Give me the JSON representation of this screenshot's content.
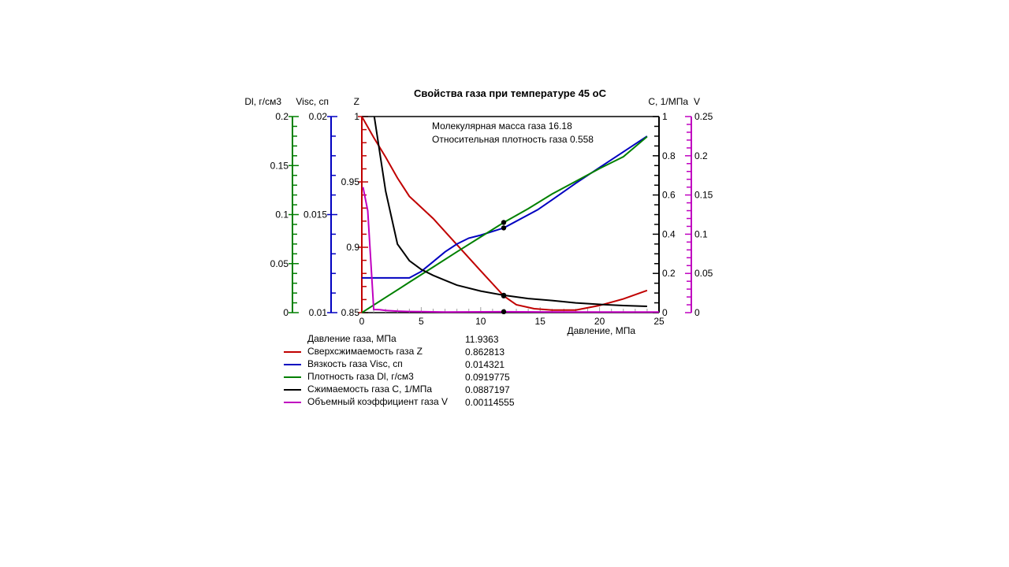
{
  "chart_data": {
    "type": "line",
    "title": "Свойства газа при температуре 45 оС",
    "annotations": [
      "Молекулярная масса газа 16.18",
      "Относительная плотность газа 0.558"
    ],
    "xlabel": "Давление, МПа",
    "xlim": [
      0,
      25
    ],
    "xticks": [
      "0",
      "5",
      "10",
      "15",
      "20",
      "25"
    ],
    "axes": [
      {
        "id": "dl",
        "label": "Dl, г/см3",
        "side": "left",
        "color": "#008000",
        "range": [
          0,
          0.2
        ],
        "ticks": [
          "0",
          "0.05",
          "0.1",
          "0.15",
          "0.2"
        ],
        "minor_step": 0.01
      },
      {
        "id": "visc",
        "label": "Visc, сп",
        "side": "left",
        "color": "#0000c0",
        "range": [
          0.01,
          0.02
        ],
        "ticks": [
          "0.01",
          "0.015",
          "0.02"
        ],
        "minor_step": 0.001
      },
      {
        "id": "z",
        "label": "Z",
        "side": "left",
        "color": "#c00000",
        "range": [
          0.85,
          1
        ],
        "ticks": [
          "0.85",
          "0.9",
          "0.95",
          "1"
        ],
        "minor_step": 0.01
      },
      {
        "id": "c",
        "label": "С, 1/МПа",
        "side": "right",
        "color": "#000000",
        "range": [
          0,
          1
        ],
        "ticks": [
          "0",
          "0.2",
          "0.4",
          "0.6",
          "0.8",
          "1"
        ],
        "minor_step": 0.05
      },
      {
        "id": "v",
        "label": "V",
        "side": "right",
        "color": "#c000c0",
        "range": [
          0,
          0.25
        ],
        "ticks": [
          "0",
          "0.05",
          "0.1",
          "0.15",
          "0.2",
          "0.25"
        ],
        "minor_step": 0.01
      }
    ],
    "series": [
      {
        "name": "Сверхсжимаемость газа Z",
        "axis": "z",
        "color": "#c00000",
        "x": [
          0,
          1,
          2,
          3,
          4,
          6,
          8,
          10,
          11.94,
          13,
          14.5,
          16,
          18,
          20,
          22,
          24
        ],
        "y": [
          1.0,
          0.984,
          0.969,
          0.953,
          0.939,
          0.922,
          0.902,
          0.882,
          0.8628,
          0.856,
          0.853,
          0.852,
          0.852,
          0.8555,
          0.8605,
          0.867
        ]
      },
      {
        "name": "Вязкость газа Visc, сп",
        "axis": "visc",
        "color": "#0000c0",
        "x": [
          0,
          2,
          4,
          5,
          6,
          7,
          8,
          9,
          10,
          11.94,
          14.8,
          16,
          18,
          20,
          22,
          24
        ],
        "y": [
          0.01177,
          0.01177,
          0.01177,
          0.0121,
          0.0126,
          0.0131,
          0.0135,
          0.0138,
          0.01395,
          0.014321,
          0.01525,
          0.01575,
          0.0166,
          0.0174,
          0.0182,
          0.019
        ]
      },
      {
        "name": "Плотность газа Dl, г/см3",
        "axis": "dl",
        "color": "#008000",
        "x": [
          0,
          2,
          4,
          6,
          8,
          10,
          11.94,
          14,
          16,
          18,
          20,
          22,
          24
        ],
        "y": [
          0,
          0.0155,
          0.031,
          0.0465,
          0.062,
          0.0772,
          0.0919775,
          0.106,
          0.121,
          0.134,
          0.147,
          0.159,
          0.1795
        ]
      },
      {
        "name": "Сжимаемость газа С, 1/МПа",
        "axis": "c",
        "color": "#000000",
        "x": [
          1.05,
          2,
          3,
          4,
          5,
          6,
          7,
          8,
          10,
          11.94,
          14,
          16,
          18,
          20,
          22,
          24
        ],
        "y": [
          1.0,
          0.62,
          0.35,
          0.265,
          0.22,
          0.19,
          0.165,
          0.14,
          0.11,
          0.0887197,
          0.072,
          0.062,
          0.05,
          0.042,
          0.036,
          0.032
        ]
      },
      {
        "name": "Объемный коэффициент газа V",
        "axis": "v",
        "color": "#c000c0",
        "x": [
          0.1,
          0.5,
          1.0,
          1.5,
          2,
          3,
          4,
          5,
          7,
          11.94,
          15,
          20,
          25
        ],
        "y": [
          0.16,
          0.13,
          0.004,
          0.0038,
          0.0028,
          0.0019,
          0.0014,
          0.0012,
          0.0008,
          0.00114555,
          0.0009,
          0.0008,
          0.0008
        ]
      }
    ],
    "cursor": {
      "x": 11.9363
    }
  },
  "legend": {
    "pressure_label": "Давление газа, МПа",
    "pressure_value": "11.9363",
    "items": [
      {
        "label": "Сверхсжимаемость газа Z",
        "value": "0.862813",
        "color": "#c00000"
      },
      {
        "label": "Вязкость газа Visc, сп",
        "value": "0.014321",
        "color": "#0000c0"
      },
      {
        "label": "Плотность газа Dl, г/см3",
        "value": "0.0919775",
        "color": "#008000"
      },
      {
        "label": "Сжимаемость газа С, 1/МПа",
        "value": "0.0887197",
        "color": "#000000"
      },
      {
        "label": "Объемный коэффициент газа V",
        "value": "0.00114555",
        "color": "#c000c0"
      }
    ]
  }
}
